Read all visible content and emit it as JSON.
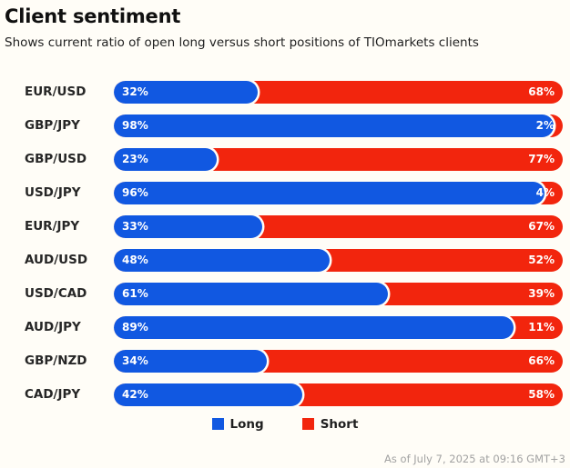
{
  "header": {
    "title": "Client sentiment",
    "subtitle": "Shows current ratio of open long versus short positions of TIOmarkets clients"
  },
  "colors": {
    "long": "#1158e1",
    "short": "#f2250d",
    "background": "#fffdf7"
  },
  "legend": {
    "long_label": "Long",
    "short_label": "Short"
  },
  "footer": {
    "as_of": "As of July 7, 2025 at 09:16 GMT+3"
  },
  "chart_data": {
    "type": "bar",
    "orientation": "horizontal-stacked",
    "title": "Client sentiment",
    "subtitle": "Shows current ratio of open long versus short positions of TIOmarkets clients",
    "legend_position": "bottom-center",
    "xlim": [
      0,
      100
    ],
    "grid": false,
    "categories": [
      "EUR/USD",
      "GBP/JPY",
      "GBP/USD",
      "USD/JPY",
      "EUR/JPY",
      "AUD/USD",
      "USD/CAD",
      "AUD/JPY",
      "GBP/NZD",
      "CAD/JPY"
    ],
    "series": [
      {
        "name": "Long",
        "color": "#1158e1",
        "values": [
          32,
          98,
          23,
          96,
          33,
          48,
          61,
          89,
          34,
          42
        ]
      },
      {
        "name": "Short",
        "color": "#f2250d",
        "values": [
          68,
          2,
          77,
          4,
          67,
          52,
          39,
          11,
          66,
          58
        ]
      }
    ],
    "rows": [
      {
        "pair": "EUR/USD",
        "long": 32,
        "short": 68,
        "long_label": "32%",
        "short_label": "68%"
      },
      {
        "pair": "GBP/JPY",
        "long": 98,
        "short": 2,
        "long_label": "98%",
        "short_label": "2%"
      },
      {
        "pair": "GBP/USD",
        "long": 23,
        "short": 77,
        "long_label": "23%",
        "short_label": "77%"
      },
      {
        "pair": "USD/JPY",
        "long": 96,
        "short": 4,
        "long_label": "96%",
        "short_label": "4%"
      },
      {
        "pair": "EUR/JPY",
        "long": 33,
        "short": 67,
        "long_label": "33%",
        "short_label": "67%"
      },
      {
        "pair": "AUD/USD",
        "long": 48,
        "short": 52,
        "long_label": "48%",
        "short_label": "52%"
      },
      {
        "pair": "USD/CAD",
        "long": 61,
        "short": 39,
        "long_label": "61%",
        "short_label": "39%"
      },
      {
        "pair": "AUD/JPY",
        "long": 89,
        "short": 11,
        "long_label": "89%",
        "short_label": "11%"
      },
      {
        "pair": "GBP/NZD",
        "long": 34,
        "short": 66,
        "long_label": "34%",
        "short_label": "66%"
      },
      {
        "pair": "CAD/JPY",
        "long": 42,
        "short": 58,
        "long_label": "42%",
        "short_label": "58%"
      }
    ]
  }
}
